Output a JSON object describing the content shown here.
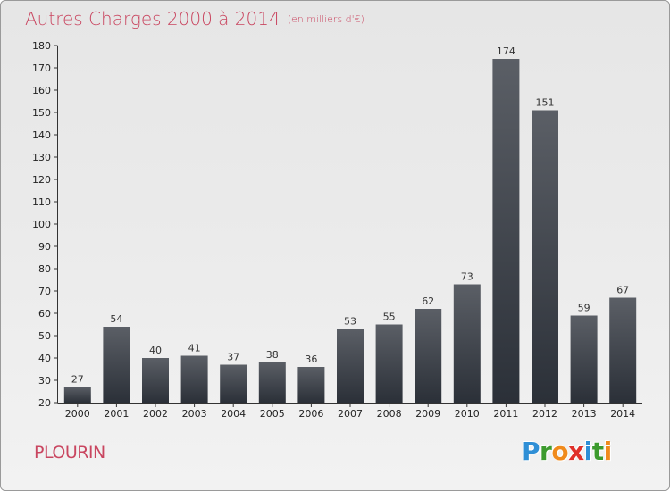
{
  "header": {
    "title": "Autres Charges 2000 à 2014",
    "subtitle": "(en milliers d'€)"
  },
  "footer": {
    "town": "PLOURIN",
    "logo_letters": [
      {
        "ch": "P",
        "color": "#2f8fd6"
      },
      {
        "ch": "r",
        "color": "#3d9b2e"
      },
      {
        "ch": "o",
        "color": "#f08a1c"
      },
      {
        "ch": "x",
        "color": "#e0302a"
      },
      {
        "ch": "i",
        "color": "#2f8fd6"
      },
      {
        "ch": "t",
        "color": "#3d9b2e"
      },
      {
        "ch": "i",
        "color": "#f08a1c"
      }
    ]
  },
  "chart_data": {
    "type": "bar",
    "title": "Autres Charges 2000 à 2014",
    "subtitle": "(en milliers d'€)",
    "categories": [
      "2000",
      "2001",
      "2002",
      "2003",
      "2004",
      "2005",
      "2006",
      "2007",
      "2008",
      "2009",
      "2010",
      "2011",
      "2012",
      "2013",
      "2014"
    ],
    "values": [
      27,
      54,
      40,
      41,
      37,
      38,
      36,
      53,
      55,
      62,
      73,
      174,
      151,
      59,
      67
    ],
    "ylim": [
      20,
      180
    ],
    "yticks": [
      20,
      30,
      40,
      50,
      60,
      70,
      80,
      90,
      100,
      110,
      120,
      130,
      140,
      150,
      160,
      170,
      180
    ],
    "grid": false,
    "bar_color_top": "#5b5f66",
    "bar_color_bottom": "#2b3038",
    "title_color": "#c94660"
  }
}
